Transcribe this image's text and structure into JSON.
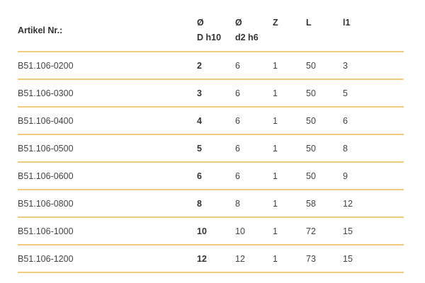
{
  "header": {
    "article": "Artikel Nr.:",
    "d_sym": "Ø",
    "d_label": "D h10",
    "d2_sym": "Ø",
    "d2_label": "d2 h6",
    "z": "Z",
    "l": "L",
    "l1": "l1"
  },
  "rows": [
    [
      "B51.106-0200",
      "2",
      "6",
      "1",
      "50",
      "3"
    ],
    [
      "B51.106-0300",
      "3",
      "6",
      "1",
      "50",
      "5"
    ],
    [
      "B51.106-0400",
      "4",
      "6",
      "1",
      "50",
      "6"
    ],
    [
      "B51.106-0500",
      "5",
      "6",
      "1",
      "50",
      "8"
    ],
    [
      "B51.106-0600",
      "6",
      "6",
      "1",
      "50",
      "9"
    ],
    [
      "B51.106-0800",
      "8",
      "8",
      "1",
      "58",
      "12"
    ],
    [
      "B51.106-1000",
      "10",
      "10",
      "1",
      "72",
      "15"
    ],
    [
      "B51.106-1200",
      "12",
      "12",
      "1",
      "73",
      "15"
    ]
  ],
  "colors": {
    "divider": "#efcb80"
  }
}
